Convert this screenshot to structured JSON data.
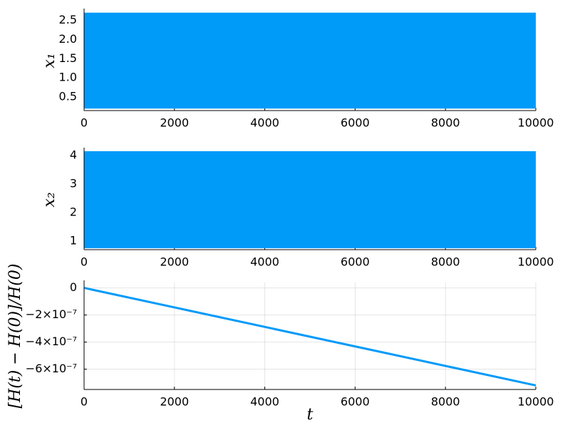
{
  "chart_data": [
    {
      "type": "range",
      "ylabel": "x₁",
      "x": [
        0,
        10000
      ],
      "series": [
        {
          "color": "#009af9",
          "low": [
            0.2,
            0.2
          ],
          "high": [
            2.7,
            2.7
          ]
        }
      ],
      "xlim": [
        0,
        10000
      ],
      "xticks": [
        0,
        2000,
        4000,
        6000,
        8000,
        10000
      ],
      "ylim": [
        0.15,
        2.75
      ],
      "yticks": [
        0.5,
        {
          "value": 1,
          "label": "1.0"
        },
        1.5,
        {
          "value": 2,
          "label": "2.0"
        },
        2.5
      ],
      "grid": false
    },
    {
      "type": "range",
      "ylabel": "x₂",
      "x": [
        0,
        10000
      ],
      "series": [
        {
          "color": "#009af9",
          "low": [
            0.75,
            0.75
          ],
          "high": [
            4.15,
            4.15
          ]
        }
      ],
      "xlim": [
        0,
        10000
      ],
      "xticks": [
        0,
        2000,
        4000,
        6000,
        8000,
        10000
      ],
      "ylim": [
        0.7,
        4.2
      ],
      "yticks": [
        1,
        2,
        3,
        4
      ],
      "grid": false
    },
    {
      "type": "line",
      "ylabel": "[H(t) − H(0)]/H(0)",
      "xlabel": "t",
      "x": [
        0,
        10000
      ],
      "series": [
        {
          "color": "#009af9",
          "values": [
            0,
            -7.2e-07
          ]
        }
      ],
      "xlim": [
        0,
        10000
      ],
      "xticks": [
        0,
        2000,
        4000,
        6000,
        8000,
        10000
      ],
      "ylim": [
        -7.5e-07,
        4e-08
      ],
      "yticks": [
        {
          "value": -6e-07,
          "label": "−6×10⁻⁷"
        },
        {
          "value": -4e-07,
          "label": "−4×10⁻⁷"
        },
        {
          "value": -2e-07,
          "label": "−2×10⁻⁷"
        },
        0
      ],
      "grid": true
    }
  ]
}
